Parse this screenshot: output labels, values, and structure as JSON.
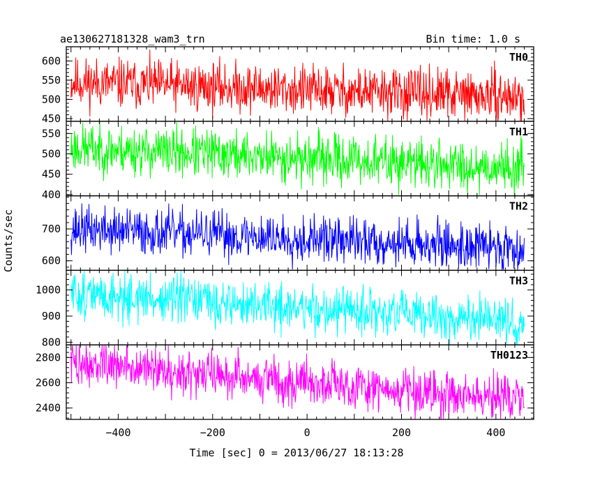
{
  "header": {
    "title": "ae130627181328_wam3_trn",
    "bin_time": "Bin time: 1.0 s"
  },
  "chart_data": {
    "type": "line",
    "ylabel": "Counts/sec",
    "xlabel": "Time [sec] 0 = 2013/06/27 18:13:28",
    "xlim": [
      -510,
      480
    ],
    "x_data_range": [
      -500,
      460
    ],
    "xticks": [
      -400,
      -200,
      0,
      200,
      400
    ],
    "xtick_labels": [
      "−400",
      "−200",
      "0",
      "200",
      "400"
    ],
    "bin_time_s": 1.0,
    "panels": [
      {
        "name": "TH0",
        "color": "#ff0000",
        "ylim": [
          443,
          637
        ],
        "yticks": [
          450,
          500,
          550,
          600
        ],
        "trend_start": 545,
        "trend_end": 505,
        "noise": 32,
        "seed": 11
      },
      {
        "name": "TH1",
        "color": "#00ff00",
        "ylim": [
          397,
          580
        ],
        "yticks": [
          400,
          450,
          500,
          550
        ],
        "trend_start": 515,
        "trend_end": 465,
        "noise": 30,
        "seed": 23
      },
      {
        "name": "TH2",
        "color": "#0000ff",
        "ylim": [
          570,
          804
        ],
        "yticks": [
          600,
          700
        ],
        "trend_start": 700,
        "trend_end": 640,
        "noise": 36,
        "seed": 37
      },
      {
        "name": "TH3",
        "color": "#00ffff",
        "ylim": [
          790,
          1075
        ],
        "yticks": [
          800,
          900,
          1000
        ],
        "trend_start": 985,
        "trend_end": 875,
        "noise": 45,
        "seed": 51
      },
      {
        "name": "TH0123",
        "color": "#ff00ff",
        "ylim": [
          2310,
          2900
        ],
        "yticks": [
          2400,
          2600,
          2800
        ],
        "trend_start": 2760,
        "trend_end": 2460,
        "noise": 90,
        "seed": 73
      }
    ]
  }
}
